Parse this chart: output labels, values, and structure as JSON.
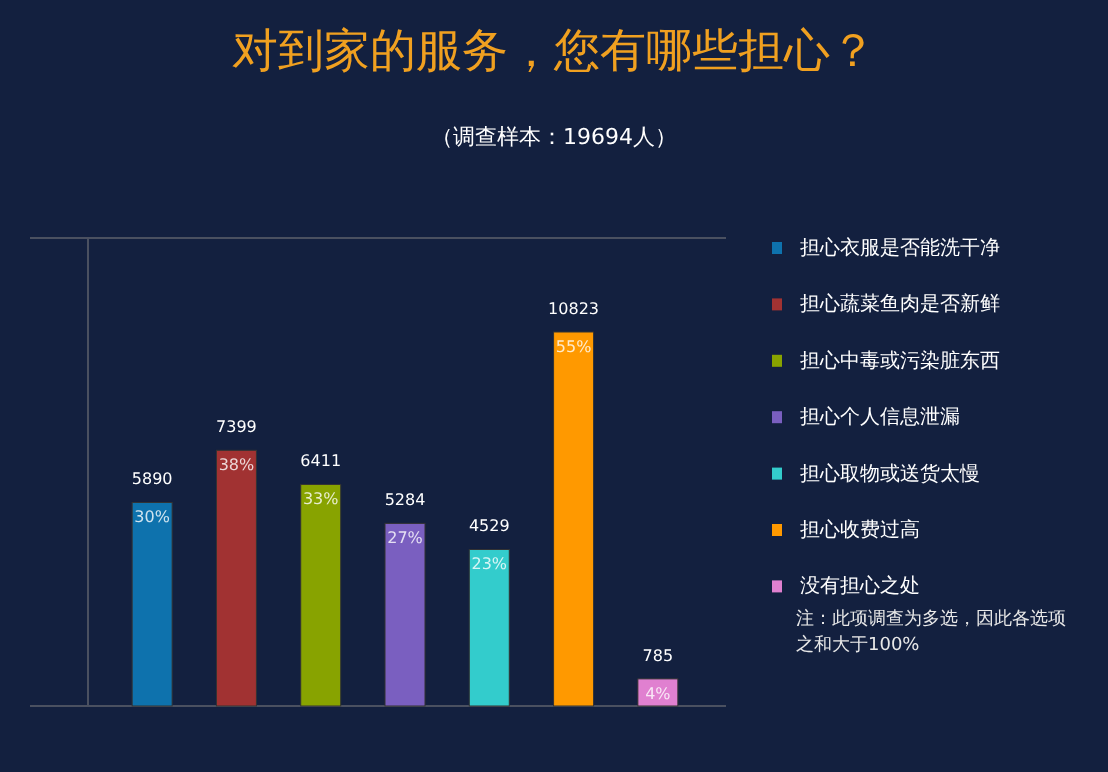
{
  "chart_data": {
    "type": "bar",
    "title": "对到家的服务，您有哪些担心？",
    "subtitle": "（调查样本：19694人）",
    "categories": [
      null,
      null,
      null,
      null,
      null,
      null,
      null
    ],
    "stacked": true,
    "series": [
      {
        "name": "担心衣服是否能洗干净",
        "color": "#0e72ad",
        "values": [
          5890,
          null,
          null,
          null,
          null,
          null,
          null
        ]
      },
      {
        "name": "担心蔬菜鱼肉是否新鲜",
        "color": "#a13232",
        "values": [
          null,
          7399,
          null,
          null,
          null,
          null,
          null
        ]
      },
      {
        "name": "担心中毒或污染脏东西",
        "color": "#88a300",
        "values": [
          null,
          null,
          6411,
          null,
          null,
          null,
          null
        ]
      },
      {
        "name": "担心个人信息泄漏",
        "color": "#7a5fc0",
        "values": [
          null,
          null,
          null,
          5284,
          null,
          null,
          null
        ]
      },
      {
        "name": "担心取物或送货太慢",
        "color": "#33cccc",
        "values": [
          null,
          null,
          null,
          null,
          4529,
          null,
          null
        ]
      },
      {
        "name": "担心收费过高",
        "color": "#ff9900",
        "values": [
          null,
          null,
          null,
          null,
          null,
          10823,
          null
        ]
      },
      {
        "name": "没有担心之处",
        "color": "#e080d0",
        "values": [
          null,
          null,
          null,
          null,
          null,
          null,
          785
        ]
      }
    ],
    "data_labels": true,
    "legend": "right",
    "annotations": [
      "30%",
      "38%",
      "33%",
      "27%",
      "23%",
      "55%",
      "4%",
      "注：此项调查为多选，因此各选项之和大于100%"
    ]
  }
}
